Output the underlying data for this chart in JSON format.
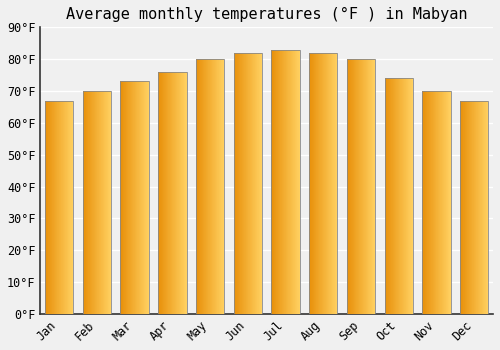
{
  "title": "Average monthly temperatures (°F ) in Mabyan",
  "months": [
    "Jan",
    "Feb",
    "Mar",
    "Apr",
    "May",
    "Jun",
    "Jul",
    "Aug",
    "Sep",
    "Oct",
    "Nov",
    "Dec"
  ],
  "values": [
    67,
    70,
    73,
    76,
    80,
    82,
    83,
    82,
    80,
    74,
    70,
    67
  ],
  "bar_color_left": "#E8900A",
  "bar_color_right": "#FFD060",
  "bar_edge_color": "#888888",
  "background_color": "#f0f0f0",
  "plot_bg_color": "#f0f0f0",
  "grid_color": "#ffffff",
  "ylim": [
    0,
    90
  ],
  "yticks": [
    0,
    10,
    20,
    30,
    40,
    50,
    60,
    70,
    80,
    90
  ],
  "title_fontsize": 11,
  "tick_fontsize": 8.5,
  "font_family": "monospace"
}
